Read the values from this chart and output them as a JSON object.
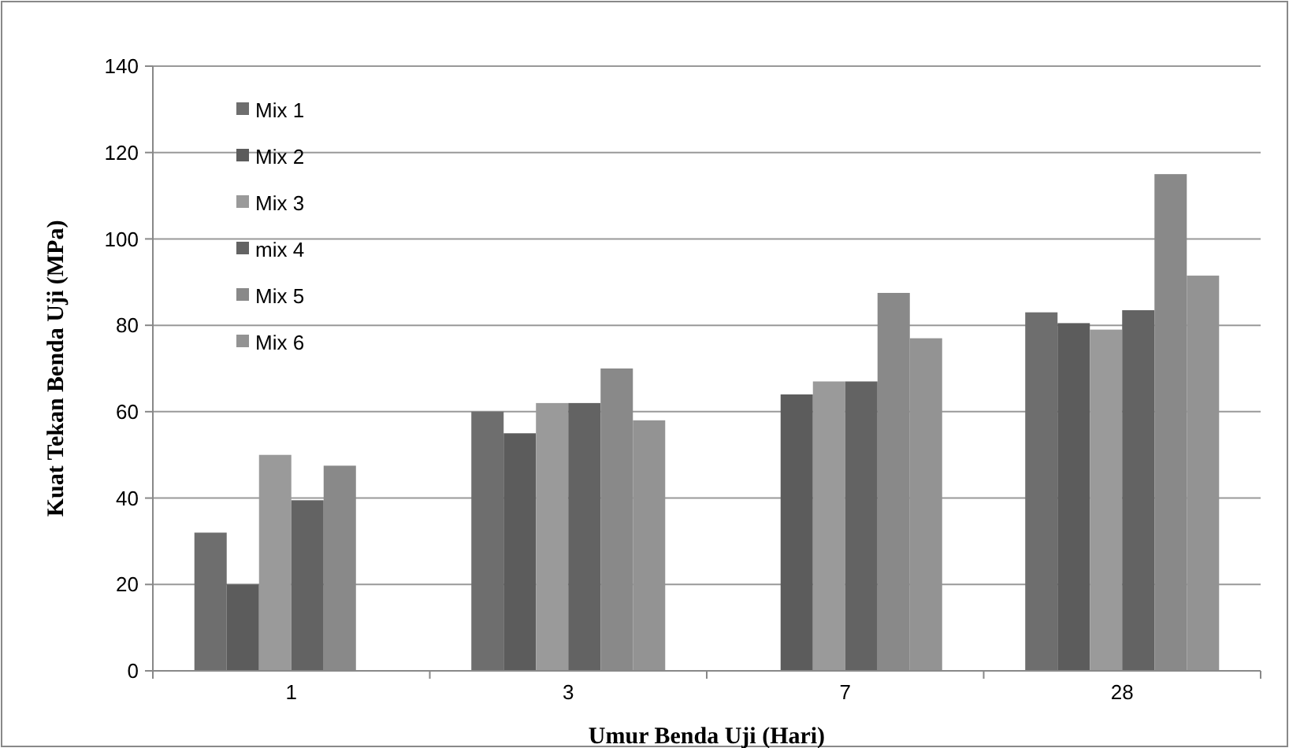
{
  "chart_data": {
    "type": "bar",
    "xlabel": "Umur Benda Uji (Hari)",
    "ylabel": "Kuat Tekan Benda Uji (MPa)",
    "categories": [
      "1",
      "3",
      "7",
      "28"
    ],
    "series": [
      {
        "name": "Mix 1",
        "color": "#6e6e6e",
        "values": [
          32,
          60,
          null,
          83
        ]
      },
      {
        "name": "Mix 2",
        "color": "#5c5c5c",
        "values": [
          20,
          55,
          64,
          80.5
        ]
      },
      {
        "name": "Mix 3",
        "color": "#9a9a9a",
        "values": [
          50,
          62,
          67,
          79
        ]
      },
      {
        "name": "mix 4",
        "color": "#636363",
        "values": [
          39.5,
          62,
          67,
          83.5
        ]
      },
      {
        "name": "Mix 5",
        "color": "#898989",
        "values": [
          47.5,
          70,
          87.5,
          115
        ]
      },
      {
        "name": "Mix 6",
        "color": "#939393",
        "values": [
          null,
          58,
          77,
          91.5
        ]
      }
    ],
    "ylim": [
      0,
      140
    ],
    "yticks": [
      0,
      20,
      40,
      60,
      80,
      100,
      120,
      140
    ],
    "grid": "y",
    "legend": "top left"
  }
}
